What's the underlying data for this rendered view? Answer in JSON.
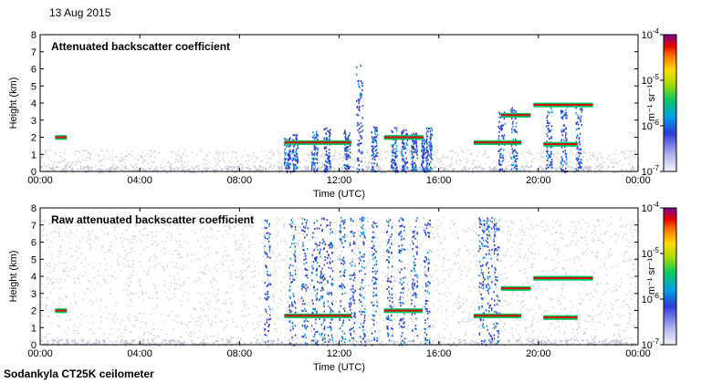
{
  "header": {
    "date": "13 Aug 2015"
  },
  "footer": {
    "instrument": "Sodankyla CT25K ceilometer"
  },
  "chart_data": [
    {
      "type": "heatmap",
      "title": "Attenuated backscatter coefficient",
      "xlabel": "Time (UTC)",
      "ylabel": "Height (km)",
      "xticks": [
        "00:00",
        "04:00",
        "08:00",
        "12:00",
        "16:00",
        "20:00",
        "00:00"
      ],
      "xlim": [
        0,
        24
      ],
      "yticks": [
        0,
        1,
        2,
        3,
        4,
        5,
        6,
        7,
        8
      ],
      "ylim": [
        0,
        8
      ],
      "colorbar": {
        "label": "m⁻¹ sr⁻¹",
        "scale": "log",
        "range": [
          1e-07,
          0.0001
        ],
        "ticks": [
          {
            "mantissa": "10",
            "exp": "-4",
            "value": 0.0001
          },
          {
            "mantissa": "10",
            "exp": "-5",
            "value": 1e-05
          },
          {
            "mantissa": "10",
            "exp": "-6",
            "value": 1e-06
          },
          {
            "mantissa": "10",
            "exp": "-7",
            "value": 1e-07
          }
        ]
      }
    },
    {
      "type": "heatmap",
      "title": "Raw attenuated backscatter coefficient",
      "xlabel": "Time (UTC)",
      "ylabel": "Height (km)",
      "xticks": [
        "00:00",
        "04:00",
        "08:00",
        "12:00",
        "16:00",
        "20:00",
        "00:00"
      ],
      "xlim": [
        0,
        24
      ],
      "yticks": [
        0,
        1,
        2,
        3,
        4,
        5,
        6,
        7,
        8
      ],
      "ylim": [
        0,
        8
      ],
      "colorbar": {
        "label": "m⁻¹ sr⁻¹",
        "scale": "log",
        "range": [
          1e-07,
          0.0001
        ],
        "ticks": [
          {
            "mantissa": "10",
            "exp": "-4",
            "value": 0.0001
          },
          {
            "mantissa": "10",
            "exp": "-5",
            "value": 1e-05
          },
          {
            "mantissa": "10",
            "exp": "-6",
            "value": 1e-06
          },
          {
            "mantissa": "10",
            "exp": "-7",
            "value": 1e-07
          }
        ]
      }
    }
  ]
}
